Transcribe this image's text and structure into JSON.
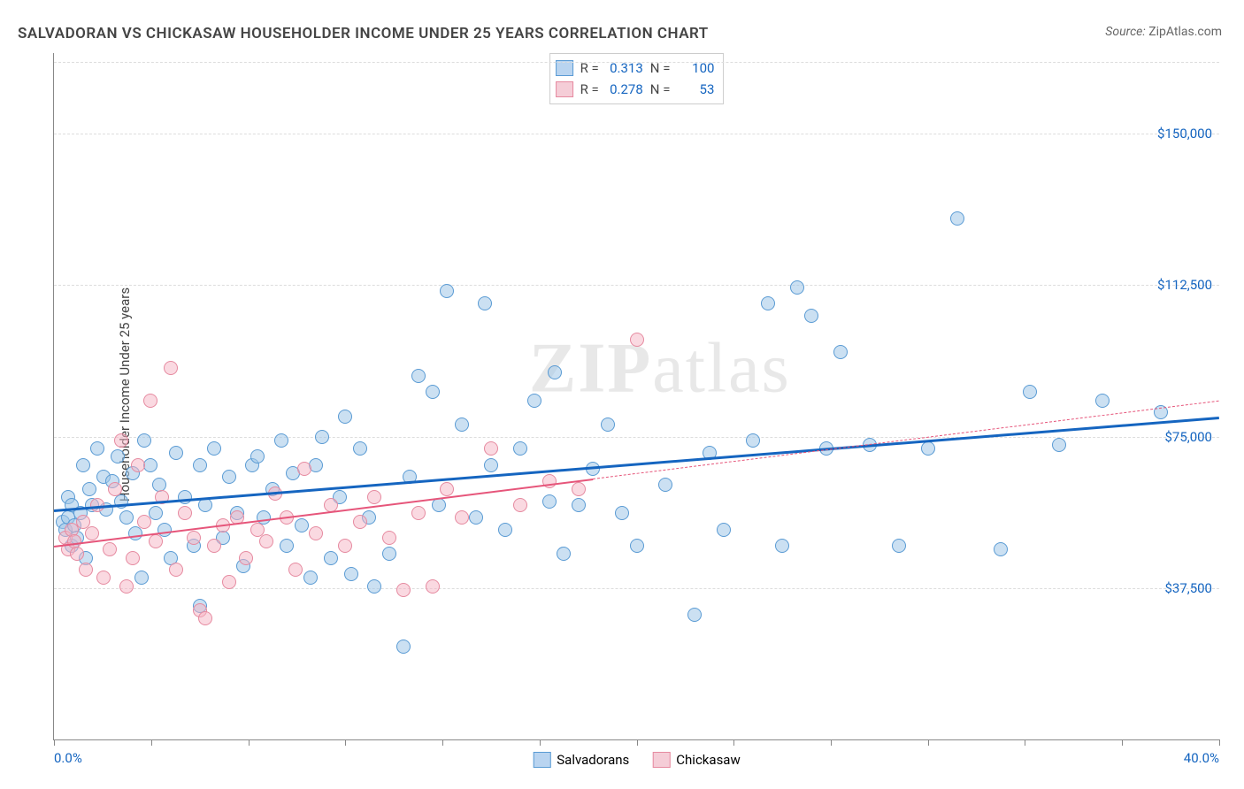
{
  "title": "SALVADORAN VS CHICKASAW HOUSEHOLDER INCOME UNDER 25 YEARS CORRELATION CHART",
  "source_label": "Source:",
  "source_value": "ZipAtlas.com",
  "watermark": "ZIPatlas",
  "y_axis_label": "Householder Income Under 25 years",
  "chart": {
    "type": "scatter",
    "xlim": [
      0,
      40
    ],
    "ylim": [
      0,
      170000
    ],
    "x_tick_positions": [
      0,
      3.33,
      6.67,
      10,
      13.33,
      16.67,
      20,
      23.33,
      26.67,
      30,
      33.33,
      36.67,
      40
    ],
    "x_tick_labels": {
      "0": "0.0%",
      "40": "40.0%"
    },
    "y_tick_positions": [
      37500,
      75000,
      112500,
      150000
    ],
    "y_tick_labels": [
      "$37,500",
      "$75,000",
      "$112,500",
      "$150,000"
    ],
    "grid_color": "#dddddd",
    "axis_color": "#888888",
    "background_color": "#ffffff",
    "point_radius": 7,
    "point_opacity": 0.55,
    "stats_box": [
      {
        "swatch_fill": "#b9d4f0",
        "swatch_border": "#5a9bd4",
        "r_label": "R =",
        "r_value": "0.313",
        "n_label": "N =",
        "n_value": "100"
      },
      {
        "swatch_fill": "#f5cdd7",
        "swatch_border": "#e68aa0",
        "r_label": "R =",
        "r_value": "0.278",
        "n_label": "N =",
        "n_value": "53"
      }
    ],
    "bottom_legend": [
      {
        "swatch_fill": "#b9d4f0",
        "swatch_border": "#5a9bd4",
        "label": "Salvadorans"
      },
      {
        "swatch_fill": "#f5cdd7",
        "swatch_border": "#e68aa0",
        "label": "Chickasaw"
      }
    ],
    "series": [
      {
        "name": "Salvadorans",
        "fill_color": "rgba(160,198,232,0.55)",
        "stroke_color": "#5a9bd4",
        "trendline_color": "#1565c0",
        "trendline_width": 3,
        "trendline_solid": true,
        "trendline": {
          "x1": 0,
          "y1": 57000,
          "x2": 40,
          "y2": 80000
        },
        "points": [
          [
            0.3,
            54000
          ],
          [
            0.4,
            52000
          ],
          [
            0.5,
            60000
          ],
          [
            0.5,
            55000
          ],
          [
            0.6,
            48000
          ],
          [
            0.6,
            58000
          ],
          [
            0.7,
            53000
          ],
          [
            0.8,
            50000
          ],
          [
            0.9,
            56000
          ],
          [
            1.0,
            68000
          ],
          [
            1.1,
            45000
          ],
          [
            1.2,
            62000
          ],
          [
            1.3,
            58000
          ],
          [
            1.5,
            72000
          ],
          [
            1.7,
            65000
          ],
          [
            1.8,
            57000
          ],
          [
            2.0,
            64000
          ],
          [
            2.2,
            70000
          ],
          [
            2.3,
            59000
          ],
          [
            2.5,
            55000
          ],
          [
            2.7,
            66000
          ],
          [
            2.8,
            51000
          ],
          [
            3.0,
            40000
          ],
          [
            3.1,
            74000
          ],
          [
            3.3,
            68000
          ],
          [
            3.5,
            56000
          ],
          [
            3.6,
            63000
          ],
          [
            3.8,
            52000
          ],
          [
            4.0,
            45000
          ],
          [
            4.2,
            71000
          ],
          [
            4.5,
            60000
          ],
          [
            4.8,
            48000
          ],
          [
            5.0,
            68000
          ],
          [
            5.0,
            33000
          ],
          [
            5.2,
            58000
          ],
          [
            5.5,
            72000
          ],
          [
            5.8,
            50000
          ],
          [
            6.0,
            65000
          ],
          [
            6.3,
            56000
          ],
          [
            6.5,
            43000
          ],
          [
            6.8,
            68000
          ],
          [
            7.0,
            70000
          ],
          [
            7.2,
            55000
          ],
          [
            7.5,
            62000
          ],
          [
            7.8,
            74000
          ],
          [
            8.0,
            48000
          ],
          [
            8.2,
            66000
          ],
          [
            8.5,
            53000
          ],
          [
            8.8,
            40000
          ],
          [
            9.0,
            68000
          ],
          [
            9.2,
            75000
          ],
          [
            9.5,
            45000
          ],
          [
            9.8,
            60000
          ],
          [
            10.0,
            80000
          ],
          [
            10.2,
            41000
          ],
          [
            10.5,
            72000
          ],
          [
            10.8,
            55000
          ],
          [
            11.0,
            38000
          ],
          [
            11.5,
            46000
          ],
          [
            12.0,
            23000
          ],
          [
            12.2,
            65000
          ],
          [
            12.5,
            90000
          ],
          [
            13.0,
            86000
          ],
          [
            13.2,
            58000
          ],
          [
            13.5,
            111000
          ],
          [
            14.0,
            78000
          ],
          [
            14.5,
            55000
          ],
          [
            14.8,
            108000
          ],
          [
            15.0,
            68000
          ],
          [
            15.5,
            52000
          ],
          [
            16.0,
            72000
          ],
          [
            16.5,
            84000
          ],
          [
            17.0,
            59000
          ],
          [
            17.2,
            91000
          ],
          [
            17.5,
            46000
          ],
          [
            18.0,
            58000
          ],
          [
            18.5,
            67000
          ],
          [
            19.0,
            78000
          ],
          [
            19.5,
            56000
          ],
          [
            20.0,
            48000
          ],
          [
            21.0,
            63000
          ],
          [
            22.0,
            31000
          ],
          [
            22.5,
            71000
          ],
          [
            23.0,
            52000
          ],
          [
            24.0,
            74000
          ],
          [
            24.5,
            108000
          ],
          [
            25.0,
            48000
          ],
          [
            25.5,
            112000
          ],
          [
            26.0,
            105000
          ],
          [
            26.5,
            72000
          ],
          [
            27.0,
            96000
          ],
          [
            28.0,
            73000
          ],
          [
            29.0,
            48000
          ],
          [
            30.0,
            72000
          ],
          [
            31.0,
            129000
          ],
          [
            32.5,
            47000
          ],
          [
            33.5,
            86000
          ],
          [
            34.5,
            73000
          ],
          [
            36.0,
            84000
          ],
          [
            38.0,
            81000
          ]
        ]
      },
      {
        "name": "Chickasaw",
        "fill_color": "rgba(245,180,195,0.5)",
        "stroke_color": "#e68aa0",
        "trendline_color": "#e6557a",
        "trendline_width": 2.5,
        "trendline_solid_until_x": 18.5,
        "trendline": {
          "x1": 0,
          "y1": 48000,
          "x2": 40,
          "y2": 84000
        },
        "points": [
          [
            0.4,
            50000
          ],
          [
            0.5,
            47000
          ],
          [
            0.6,
            52000
          ],
          [
            0.7,
            49000
          ],
          [
            0.8,
            46000
          ],
          [
            1.0,
            54000
          ],
          [
            1.1,
            42000
          ],
          [
            1.3,
            51000
          ],
          [
            1.5,
            58000
          ],
          [
            1.7,
            40000
          ],
          [
            1.9,
            47000
          ],
          [
            2.1,
            62000
          ],
          [
            2.3,
            74000
          ],
          [
            2.5,
            38000
          ],
          [
            2.7,
            45000
          ],
          [
            2.9,
            68000
          ],
          [
            3.1,
            54000
          ],
          [
            3.3,
            84000
          ],
          [
            3.5,
            49000
          ],
          [
            3.7,
            60000
          ],
          [
            4.0,
            92000
          ],
          [
            4.2,
            42000
          ],
          [
            4.5,
            56000
          ],
          [
            4.8,
            50000
          ],
          [
            5.0,
            32000
          ],
          [
            5.2,
            30000
          ],
          [
            5.5,
            48000
          ],
          [
            5.8,
            53000
          ],
          [
            6.0,
            39000
          ],
          [
            6.3,
            55000
          ],
          [
            6.6,
            45000
          ],
          [
            7.0,
            52000
          ],
          [
            7.3,
            49000
          ],
          [
            7.6,
            61000
          ],
          [
            8.0,
            55000
          ],
          [
            8.3,
            42000
          ],
          [
            8.6,
            67000
          ],
          [
            9.0,
            51000
          ],
          [
            9.5,
            58000
          ],
          [
            10.0,
            48000
          ],
          [
            10.5,
            54000
          ],
          [
            11.0,
            60000
          ],
          [
            11.5,
            50000
          ],
          [
            12.0,
            37000
          ],
          [
            12.5,
            56000
          ],
          [
            13.0,
            38000
          ],
          [
            13.5,
            62000
          ],
          [
            14.0,
            55000
          ],
          [
            15.0,
            72000
          ],
          [
            16.0,
            58000
          ],
          [
            17.0,
            64000
          ],
          [
            18.0,
            62000
          ],
          [
            20.0,
            99000
          ]
        ]
      }
    ]
  }
}
